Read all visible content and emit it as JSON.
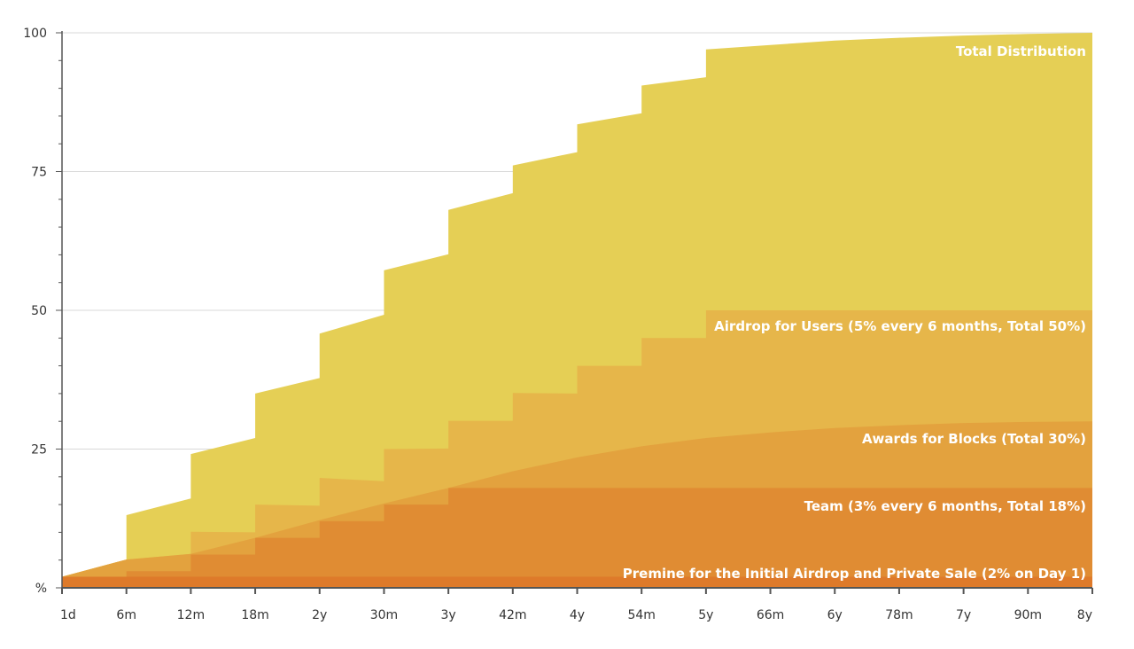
{
  "chart_data": {
    "type": "area",
    "title": "",
    "xlabel": "",
    "ylabel": "%",
    "ylim": [
      0,
      100
    ],
    "xlim": [
      0,
      96
    ],
    "y_ticks": [
      0,
      25,
      50,
      75,
      100
    ],
    "y_tick_labels": [
      "%",
      "25",
      "50",
      "75",
      "100"
    ],
    "x_ticks": [
      0,
      6,
      12,
      18,
      24,
      30,
      36,
      42,
      48,
      54,
      60,
      66,
      72,
      78,
      84,
      90,
      96
    ],
    "x_tick_labels": [
      "1d",
      "6m",
      "12m",
      "18m",
      "2y",
      "30m",
      "3y",
      "42m",
      "4y",
      "54m",
      "5y",
      "66m",
      "6y",
      "78m",
      "7y",
      "90m",
      "8y"
    ],
    "x_unit": "months",
    "grid": true,
    "series": [
      {
        "name": "Total Distribution",
        "color": "#E5CF55",
        "points": [
          [
            0,
            2
          ],
          [
            6,
            5.1
          ],
          [
            6,
            13.1
          ],
          [
            12,
            16.1
          ],
          [
            12,
            24.1
          ],
          [
            18,
            27.0
          ],
          [
            18,
            35.0
          ],
          [
            24,
            37.8
          ],
          [
            24,
            45.8
          ],
          [
            30,
            49.2
          ],
          [
            30,
            57.2
          ],
          [
            36,
            60.1
          ],
          [
            36,
            68.1
          ],
          [
            42,
            71.1
          ],
          [
            42,
            76.1
          ],
          [
            48,
            78.5
          ],
          [
            48,
            83.5
          ],
          [
            54,
            85.5
          ],
          [
            54,
            90.5
          ],
          [
            60,
            92.0
          ],
          [
            60,
            97.0
          ],
          [
            66,
            97.8
          ],
          [
            72,
            98.6
          ],
          [
            78,
            99.1
          ],
          [
            84,
            99.5
          ],
          [
            90,
            99.8
          ],
          [
            96,
            100
          ]
        ]
      },
      {
        "name": "Airdrop for Users (5% every 6 months, Total 50%)",
        "color": "#E6B64A",
        "points": [
          [
            0,
            2
          ],
          [
            6,
            5.1
          ],
          [
            6,
            5.1
          ],
          [
            12,
            6.1
          ],
          [
            12,
            10.1
          ],
          [
            18,
            10.0
          ],
          [
            18,
            15.0
          ],
          [
            24,
            14.8
          ],
          [
            24,
            19.8
          ],
          [
            30,
            19.2
          ],
          [
            30,
            25.0
          ],
          [
            36,
            25.1
          ],
          [
            36,
            30.1
          ],
          [
            42,
            30.1
          ],
          [
            42,
            35.1
          ],
          [
            48,
            35.0
          ],
          [
            48,
            40.0
          ],
          [
            54,
            40.0
          ],
          [
            54,
            45.0
          ],
          [
            60,
            45.0
          ],
          [
            60,
            50.0
          ],
          [
            96,
            50.0
          ]
        ]
      },
      {
        "name": "Awards for Blocks (Total 30%)",
        "color": "#E3A23E",
        "points": [
          [
            0,
            2
          ],
          [
            6,
            5.1
          ],
          [
            12,
            6.1
          ],
          [
            18,
            9.0
          ],
          [
            24,
            12.2
          ],
          [
            30,
            15.2
          ],
          [
            36,
            18.0
          ],
          [
            42,
            21.0
          ],
          [
            48,
            23.5
          ],
          [
            54,
            25.5
          ],
          [
            60,
            27.0
          ],
          [
            66,
            28.0
          ],
          [
            72,
            28.8
          ],
          [
            78,
            29.3
          ],
          [
            84,
            29.7
          ],
          [
            90,
            29.9
          ],
          [
            96,
            30.0
          ]
        ]
      },
      {
        "name": "Team (3% every 6 months, Total 18%)",
        "color": "#E08C33",
        "points": [
          [
            0,
            2
          ],
          [
            6,
            2
          ],
          [
            6,
            3
          ],
          [
            12,
            3
          ],
          [
            12,
            6
          ],
          [
            18,
            6
          ],
          [
            18,
            9
          ],
          [
            24,
            9
          ],
          [
            24,
            12
          ],
          [
            30,
            12
          ],
          [
            30,
            15
          ],
          [
            36,
            15
          ],
          [
            36,
            18
          ],
          [
            96,
            18
          ]
        ]
      },
      {
        "name": "Premine for the Initial Airdrop and Private Sale (2% on Day 1)",
        "color": "#DE7A2A",
        "points": [
          [
            0,
            2
          ],
          [
            96,
            2
          ]
        ]
      }
    ]
  }
}
